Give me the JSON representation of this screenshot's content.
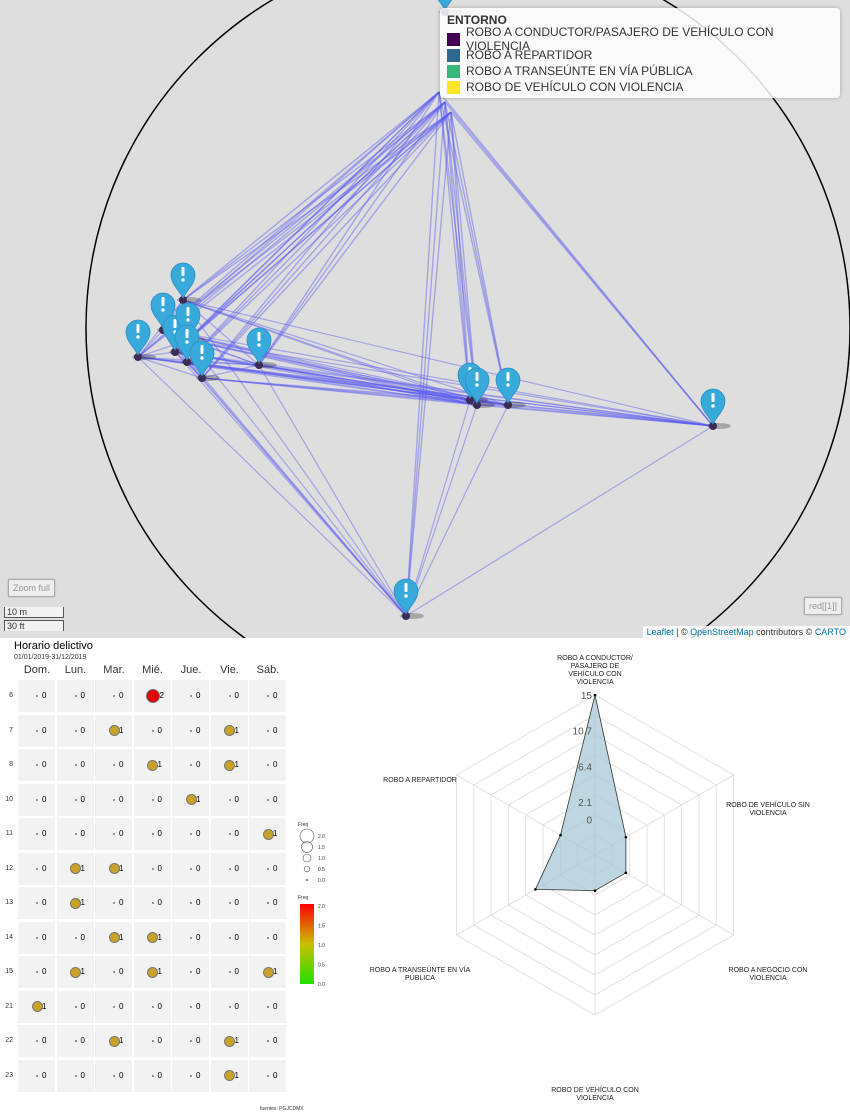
{
  "map": {
    "legend": {
      "title": "ENTORNO",
      "items": [
        {
          "label": "ROBO A CONDUCTOR/PASAJERO DE VEHÍCULO CON VIOLENCIA",
          "color": "#440154"
        },
        {
          "label": "ROBO A REPARTIDOR",
          "color": "#31688e"
        },
        {
          "label": "ROBO A TRANSEÚNTE EN VÍA PÚBLICA",
          "color": "#35b779"
        },
        {
          "label": "ROBO DE VEHÍCULO CON VIOLENCIA",
          "color": "#fde725"
        }
      ]
    },
    "zoom_full_label": "Zoom full",
    "red_button_label": "red[[1]]",
    "scale_metric": "10 m",
    "scale_imperial": "30 ft",
    "attribution": {
      "leaflet": "Leaflet",
      "sep": " | © ",
      "osm": "OpenStreetMap",
      "contrib": " contributors © ",
      "carto": "CARTO"
    },
    "marker_icon": "exclamation-pin-icon",
    "marker_color": "#38a9db",
    "line_color": "#5b5bf0"
  },
  "heatmap": {
    "title": "Horario delictivo",
    "subtitle": "01/01/2019-31/12/2019",
    "days": [
      "Dom.",
      "Lun.",
      "Mar.",
      "Mié.",
      "Jue.",
      "Vie.",
      "Sáb."
    ],
    "hours": [
      "6",
      "7",
      "8",
      "10",
      "11",
      "12",
      "13",
      "14",
      "15",
      "21",
      "22",
      "23"
    ],
    "values": [
      [
        0,
        0,
        0,
        2,
        0,
        0,
        0
      ],
      [
        0,
        0,
        1,
        0,
        0,
        1,
        0
      ],
      [
        0,
        0,
        0,
        1,
        0,
        1,
        0
      ],
      [
        0,
        0,
        0,
        0,
        1,
        0,
        0
      ],
      [
        0,
        0,
        0,
        0,
        0,
        0,
        1
      ],
      [
        0,
        1,
        1,
        0,
        0,
        0,
        0
      ],
      [
        0,
        1,
        0,
        0,
        0,
        0,
        0
      ],
      [
        0,
        0,
        1,
        1,
        0,
        0,
        0
      ],
      [
        0,
        1,
        0,
        1,
        0,
        0,
        1
      ],
      [
        1,
        0,
        0,
        0,
        0,
        0,
        0
      ],
      [
        0,
        0,
        1,
        0,
        0,
        1,
        0
      ],
      [
        0,
        0,
        0,
        0,
        0,
        1,
        0
      ]
    ],
    "size_legend": {
      "title": "Freq",
      "ticks": [
        "2.0",
        "1.5",
        "1.0",
        "0.5",
        "0.0"
      ]
    },
    "color_legend": {
      "title": "Freq",
      "ticks": [
        "2.0",
        "1.5",
        "1.0",
        "0.5",
        "0.0"
      ]
    },
    "one_color": "#c9a227",
    "max_color": "#e00000",
    "source": "fuentes: PGJCDMX"
  },
  "chart_data": {
    "type": "radar",
    "axes": [
      "ROBO A CONDUCTOR/ PASAJERO DE VEHÍCULO CON VIOLENCIA",
      "ROBO DE VEHÍCULO SIN VIOLENCIA",
      "ROBO A NEGOCIO CON VIOLENCIA",
      "ROBO DE VEHÍCULO CON VIOLENCIA",
      "ROBO A TRANSEÚNTE EN VÍA PÚBLICA",
      "ROBO A REPARTIDOR"
    ],
    "values": [
      15,
      0,
      0,
      0,
      4,
      0.5
    ],
    "ticks": [
      "15",
      "10.7",
      "6.4",
      "2.1",
      "0"
    ],
    "range": [
      -4.3,
      15
    ],
    "fill_color": "#a8c8d6"
  }
}
